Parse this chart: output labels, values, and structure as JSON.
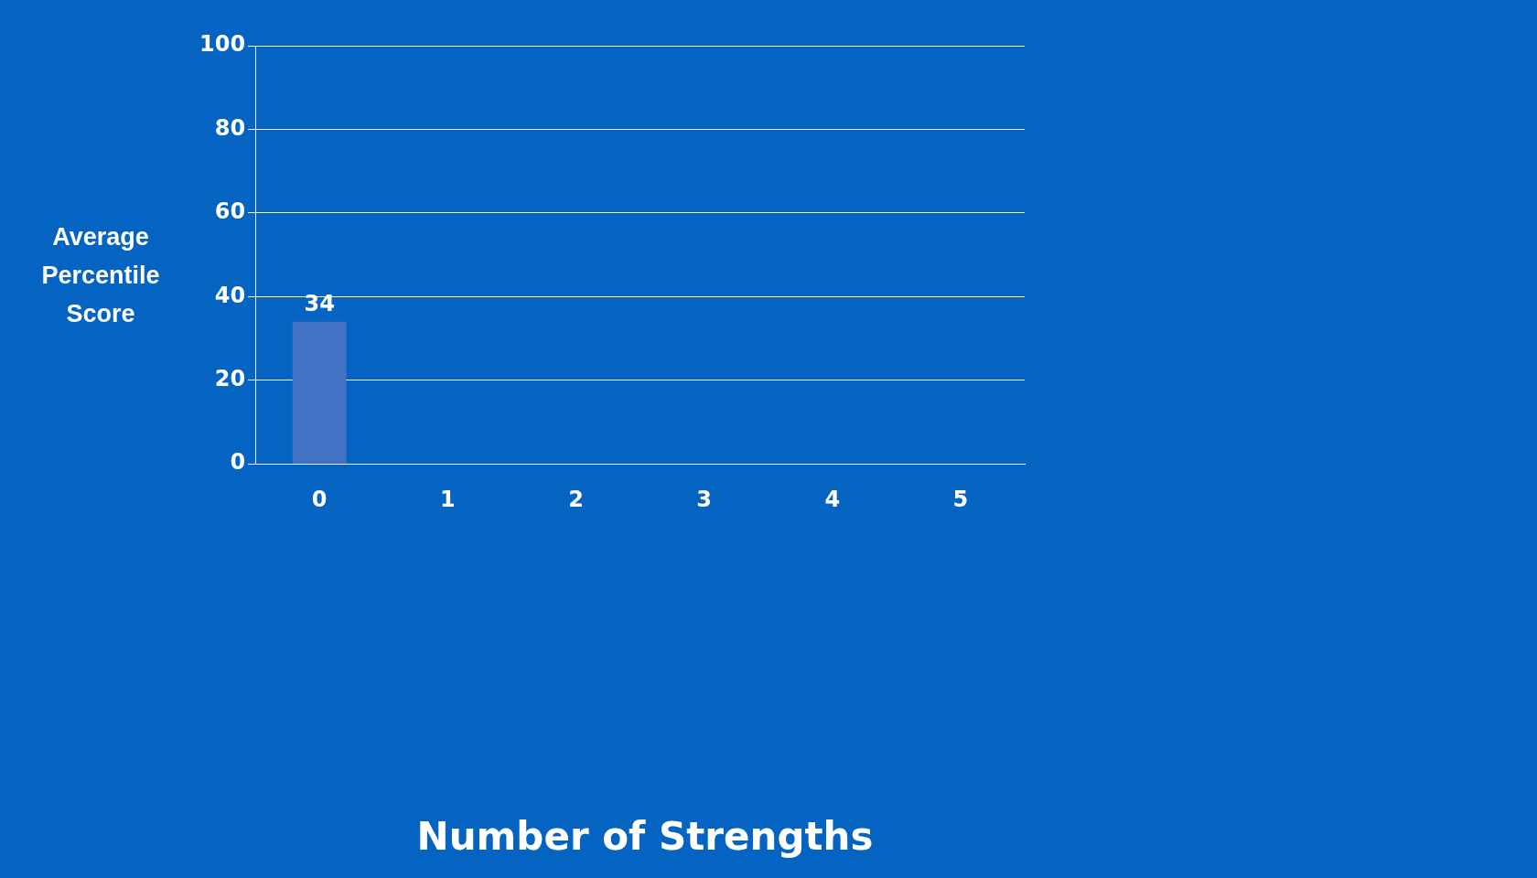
{
  "chart_data": {
    "type": "bar",
    "annotations": [
      "Number of Strengths"
    ],
    "ylabel": "Average Percentile Score",
    "categories": [
      "0",
      "1",
      "2",
      "3",
      "4",
      "5"
    ],
    "values": [
      34,
      null,
      null,
      null,
      null,
      null
    ],
    "color": "#4472c4",
    "ylim": [
      0,
      100
    ],
    "yticks": [
      0,
      20,
      40,
      60,
      80,
      100
    ],
    "grid": "y",
    "data_labels": true
  }
}
